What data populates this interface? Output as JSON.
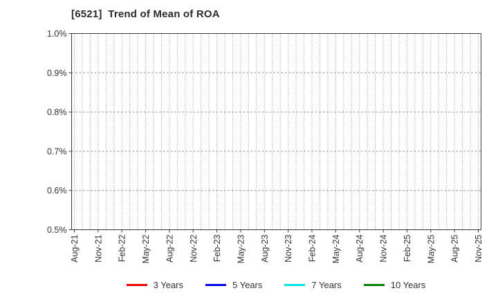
{
  "window": {
    "background": "#ffffff"
  },
  "chart_data": {
    "type": "line",
    "title": "[6521]  Trend of Mean of ROA",
    "xlabel": "",
    "ylabel": "",
    "y_tick_labels": [
      "1.0%",
      "0.9%",
      "0.8%",
      "0.7%",
      "0.6%",
      "0.5%"
    ],
    "ylim_percent": [
      0.5,
      1.0
    ],
    "x_tick_labels": [
      "Aug-21",
      "Nov-21",
      "Feb-22",
      "May-22",
      "Aug-22",
      "Nov-22",
      "Feb-23",
      "May-23",
      "Aug-23",
      "Nov-23",
      "Feb-24",
      "May-24",
      "Aug-24",
      "Nov-24",
      "Feb-25",
      "May-25",
      "Aug-25",
      "Nov-25"
    ],
    "x_tick_month_step": 3,
    "months_total": 52,
    "grid": "on",
    "legend_position": "bottom",
    "series": [
      {
        "name": "3 Years",
        "color": "#ee0000",
        "values": []
      },
      {
        "name": "5 Years",
        "color": "#0000ee",
        "values": []
      },
      {
        "name": "7 Years",
        "color": "#00e5e5",
        "values": []
      },
      {
        "name": "10 Years",
        "color": "#008000",
        "values": []
      }
    ],
    "note": "plot area is empty; no series data drawn"
  },
  "colors": {
    "axis": "#3a3a3a",
    "grid": "#9a9a9a",
    "text": "#333333",
    "title": "#2b2b2b"
  }
}
